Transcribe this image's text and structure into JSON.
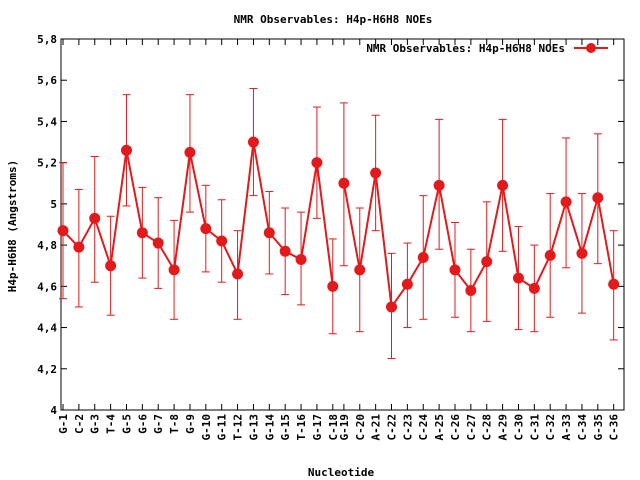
{
  "chart_data": {
    "type": "line",
    "title": "NMR Observables: H4p-H6H8 NOEs",
    "xlabel": "Nucleotide",
    "ylabel": "H4p-H6H8 (Angstroms)",
    "ylim": [
      4,
      5.8
    ],
    "yticks": [
      "4",
      "4,2",
      "4,4",
      "4,6",
      "4,8",
      "5",
      "5,2",
      "5,4",
      "5,6",
      "5,8"
    ],
    "yticks_values": [
      4.0,
      4.2,
      4.4,
      4.6,
      4.8,
      5.0,
      5.2,
      5.4,
      5.6,
      5.8
    ],
    "grid": false,
    "legend_position": "top-right",
    "series_color": "#e31a1c",
    "series": [
      {
        "name": "NMR Observables: H4p-H6H8 NOEs",
        "segments": [
          {
            "categories": [
              "G-1",
              "C-2",
              "G-3",
              "T-4",
              "G-5",
              "G-6",
              "G-7",
              "T-8",
              "G-9",
              "G-10",
              "G-11",
              "T-12",
              "G-13",
              "G-14",
              "G-15",
              "T-16",
              "G-17",
              "C-18"
            ],
            "values": [
              4.87,
              4.79,
              4.93,
              4.7,
              5.26,
              4.86,
              4.81,
              4.68,
              5.25,
              4.88,
              4.82,
              4.66,
              5.3,
              4.86,
              4.77,
              4.73,
              5.2,
              4.6
            ],
            "error_high": [
              5.2,
              5.07,
              5.23,
              4.94,
              5.53,
              5.08,
              5.03,
              4.92,
              5.53,
              5.09,
              5.02,
              4.87,
              5.56,
              5.06,
              4.98,
              4.96,
              5.47,
              4.83
            ],
            "error_low": [
              4.54,
              4.5,
              4.62,
              4.46,
              4.99,
              4.64,
              4.59,
              4.44,
              4.96,
              4.67,
              4.62,
              4.44,
              5.04,
              4.66,
              4.56,
              4.51,
              4.93,
              4.37
            ]
          },
          {
            "categories": [
              "G-19",
              "C-20",
              "A-21",
              "C-22",
              "C-23",
              "C-24",
              "A-25",
              "C-26",
              "C-27",
              "C-28",
              "A-29",
              "C-30",
              "C-31",
              "C-32",
              "A-33",
              "C-34",
              "G-35",
              "C-36"
            ],
            "values": [
              5.1,
              4.68,
              5.15,
              4.5,
              4.61,
              4.74,
              5.09,
              4.68,
              4.58,
              4.72,
              5.09,
              4.64,
              4.59,
              4.75,
              5.01,
              4.76,
              5.03,
              4.61
            ],
            "error_high": [
              5.49,
              4.98,
              5.43,
              4.76,
              4.81,
              5.04,
              5.41,
              4.91,
              4.78,
              5.01,
              5.41,
              4.89,
              4.8,
              5.05,
              5.32,
              5.05,
              5.34,
              4.87
            ],
            "error_low": [
              4.7,
              4.38,
              4.87,
              4.25,
              4.4,
              4.44,
              4.78,
              4.45,
              4.38,
              4.43,
              4.77,
              4.39,
              4.38,
              4.45,
              4.69,
              4.47,
              4.71,
              4.34
            ]
          }
        ]
      }
    ]
  }
}
